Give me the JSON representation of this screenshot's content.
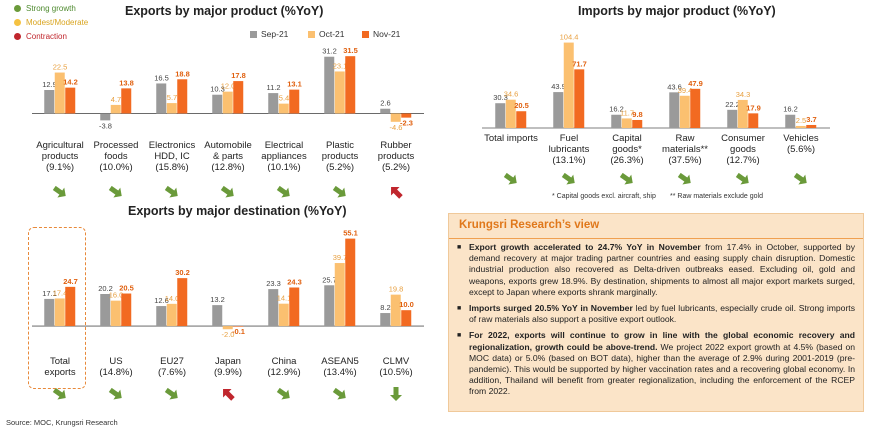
{
  "colors": {
    "sep": "#9a9a9a",
    "oct": "#fbc070",
    "nov": "#f26a21",
    "green": "#6a9a3a",
    "yellow": "#f5c242",
    "red": "#c0262d",
    "accent": "#e0781b"
  },
  "legend": {
    "series": [
      "Sep-21",
      "Oct-21",
      "Nov-21"
    ]
  },
  "performance_legend": [
    {
      "label": "Strong growth",
      "color": "#6a9a3a"
    },
    {
      "label": "Modest/Moderate",
      "color": "#f5c242"
    },
    {
      "label": "Contraction",
      "color": "#c0262d"
    }
  ],
  "chart_data": [
    {
      "type": "bar",
      "title": "Exports by major product (%YoY)",
      "categories": [
        "Agricultural products (9.1%)",
        "Processed foods (10.0%)",
        "Electronics HDD, IC (15.8%)",
        "Automobile & parts (12.8%)",
        "Electrical appliances (10.1%)",
        "Plastic products (5.2%)",
        "Rubber products (5.2%)"
      ],
      "cat_lines": [
        [
          "Agricultural",
          "products",
          "(9.1%)"
        ],
        [
          "Processed",
          "foods",
          "(10.0%)"
        ],
        [
          "Electronics",
          "HDD, IC",
          "(15.8%)"
        ],
        [
          "Automobile",
          "& parts",
          "(12.8%)"
        ],
        [
          "Electrical",
          "appliances",
          "(10.1%)"
        ],
        [
          "Plastic",
          "products",
          "(5.2%)"
        ],
        [
          "Rubber",
          "products",
          "(5.2%)"
        ]
      ],
      "series": [
        {
          "name": "Sep-21",
          "values": [
            12.9,
            -3.8,
            16.5,
            10.3,
            11.2,
            31.2,
            2.6
          ]
        },
        {
          "name": "Oct-21",
          "values": [
            22.5,
            4.7,
            5.7,
            12.0,
            5.4,
            23.1,
            -4.6
          ]
        },
        {
          "name": "Nov-21",
          "values": [
            14.2,
            13.8,
            18.8,
            17.8,
            13.1,
            31.5,
            -2.3
          ]
        }
      ],
      "labels": [
        [
          "12.9",
          "-3.8",
          "16.5",
          "10.3",
          "11.2",
          "31.2",
          "2.6"
        ],
        [
          "22.5",
          "4.7",
          "5.7",
          "12.0",
          "5.4",
          "23.1",
          "-4.6"
        ],
        [
          "14.2",
          "13.8",
          "18.8",
          "17.8",
          "13.1",
          "31.5",
          "-2.3"
        ]
      ],
      "arrows": [
        "green",
        "green",
        "green",
        "green",
        "green",
        "green",
        "red"
      ],
      "ylim": [
        -8,
        36
      ]
    },
    {
      "type": "bar",
      "title": "Imports by major product (%YoY)",
      "categories": [
        "Total imports",
        "Fuel lubricants (13.1%)",
        "Capital goods* (26.3%)",
        "Raw materials** (37.5%)",
        "Consumer goods (12.7%)",
        "Vehicles (5.6%)"
      ],
      "cat_lines": [
        [
          "Total imports"
        ],
        [
          "Fuel",
          "lubricants",
          "(13.1%)"
        ],
        [
          "Capital",
          "goods*",
          "(26.3%)"
        ],
        [
          "Raw",
          "materials**",
          "(37.5%)"
        ],
        [
          "Consumer",
          "goods",
          "(12.7%)"
        ],
        [
          "Vehicles",
          "(5.6%)"
        ]
      ],
      "series": [
        {
          "name": "Sep-21",
          "values": [
            30.3,
            43.9,
            16.2,
            43.6,
            22.2,
            16.2
          ]
        },
        {
          "name": "Oct-21",
          "values": [
            34.6,
            104.4,
            11.7,
            39.4,
            34.3,
            2.5
          ]
        },
        {
          "name": "Nov-21",
          "values": [
            20.5,
            71.7,
            9.8,
            47.9,
            17.9,
            3.7
          ]
        }
      ],
      "labels": [
        [
          "30.3",
          "43.9",
          "16.2",
          "43.6",
          "22.2",
          "16.2"
        ],
        [
          "34.6",
          "104.4",
          "11.7",
          "39.4",
          "34.3",
          "2.5"
        ],
        [
          "20.5",
          "71.7",
          "9.8",
          "47.9",
          "17.9",
          "3.7"
        ]
      ],
      "arrows": [
        "green",
        "green",
        "green",
        "green",
        "green",
        "green"
      ],
      "ylim": [
        0,
        110
      ]
    },
    {
      "type": "bar",
      "title": "Exports by major destination (%YoY)",
      "categories": [
        "Total exports",
        "US (14.8%)",
        "EU27 (7.6%)",
        "Japan (9.9%)",
        "China (12.9%)",
        "ASEAN5 (13.4%)",
        "CLMV (10.5%)"
      ],
      "cat_lines": [
        [
          "Total",
          "exports"
        ],
        [
          "US",
          "(14.8%)"
        ],
        [
          "EU27",
          "(7.6%)"
        ],
        [
          "Japan",
          "(9.9%)"
        ],
        [
          "China",
          "(12.9%)"
        ],
        [
          "ASEAN5",
          "(13.4%)"
        ],
        [
          "CLMV",
          "(10.5%)"
        ]
      ],
      "series": [
        {
          "name": "Sep-21",
          "values": [
            17.1,
            20.2,
            12.6,
            13.2,
            23.3,
            25.7,
            8.2
          ]
        },
        {
          "name": "Oct-21",
          "values": [
            17.4,
            16.0,
            14.0,
            -2.0,
            14.1,
            39.7,
            19.8
          ]
        },
        {
          "name": "Nov-21",
          "values": [
            24.7,
            20.5,
            30.2,
            -0.1,
            24.3,
            55.1,
            10.0
          ]
        }
      ],
      "labels": [
        [
          "17.1",
          "20.2",
          "12.6",
          "13.2",
          "23.3",
          "25.7",
          "8.2"
        ],
        [
          "17.4",
          "16.0",
          "14.0",
          "-2.0",
          "14.1",
          "39.7",
          "19.8"
        ],
        [
          "24.7",
          "20.5",
          "30.2",
          "-0.1",
          "24.3",
          "55.1",
          "10.0"
        ]
      ],
      "arrows": [
        "green",
        "green",
        "green",
        "red",
        "green",
        "green",
        "green-down"
      ],
      "ylim": [
        -5,
        58
      ]
    }
  ],
  "footnotes": {
    "capital": "* Capital goods excl. aircraft, ship",
    "raw": "** Raw materials exclude gold"
  },
  "view": {
    "title": "Krungsri Research’s view",
    "b1_bold": "Export growth accelerated to 24.7% YoY in November",
    "b1_rest": " from 17.4% in October, supported by demand recovery at major trading partner countries and easing supply chain disruption. Domestic industrial production also recovered as Delta-driven outbreaks eased. Excluding oil, gold and weapons, exports grew 18.9%. By destination, shipments to almost all major export markets surged, except to Japan where exports shrank marginally.",
    "b2_bold": "Imports surged 20.5% YoY in November",
    "b2_rest": " led by fuel lubricants, especially crude oil. Strong imports of raw materials also support a positive export outlook.",
    "b3_bold": "For 2022, exports will continue to grow in line with the global economic recovery and regionalization, growth could be above-trend.",
    "b3_rest": " We project 2022 export growth at 4.5% (based on MOC data) or 5.0% (based on BOT data), higher than the average of 2.9% during 2001-2019 (pre-pandemic). This would be supported by higher vaccination rates and a recovering global economy. In addition, Thailand will benefit from greater regionalization, including the enforcement of the RCEP from 2022."
  },
  "source": "Source: MOC, Krungsri Research"
}
